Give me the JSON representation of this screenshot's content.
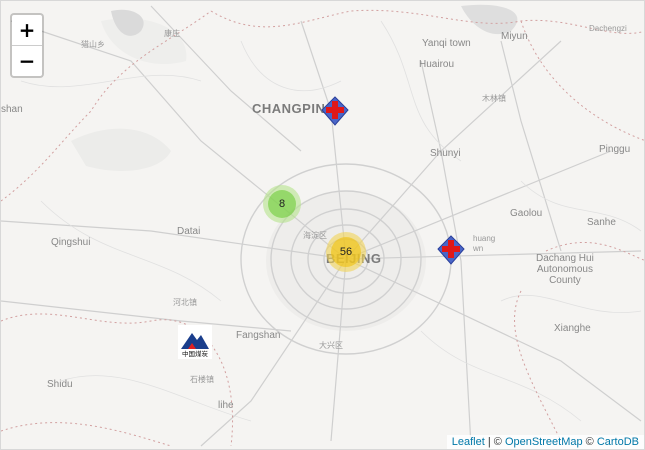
{
  "zoom": {
    "in_label": "+",
    "out_label": "−"
  },
  "labels": {
    "changping": "CHANGPING",
    "beijing": "BEIJING",
    "yanqi_town": "Yanqi town",
    "miyun": "Miyun",
    "dachengzi": "Dachengzi",
    "huairou": "Huairou",
    "mulin": "木林镇",
    "shunyi": "Shunyi",
    "pinggu": "Pinggu",
    "gaolou": "Gaolou",
    "sanhe": "Sanhe",
    "dachang": "Dachang Hui\nAutonomous\nCounty",
    "xianghe": "Xianghe",
    "fangshan": "Fangshan",
    "daxing": "大兴区",
    "haidian": "海淀区",
    "datai": "Datai",
    "qingshui": "Qingshui",
    "hebei_town": "河北镇",
    "shilou": "石楼镇",
    "shidu": "Shidu",
    "liihe": "lihe",
    "tongzhou": "huang\nwn",
    "kangzhuang": "康庄",
    "zhuoshan": "猎山乡",
    "shan_left": "shan",
    "changgou": "长沟镇"
  },
  "clusters": [
    {
      "count": "8",
      "color": "#b5e28c",
      "inner": "#6ecc39"
    },
    {
      "count": "56",
      "color": "#f1d357",
      "inner": "#f0c20c"
    }
  ],
  "markers": [
    {
      "name": "hospital-marker-changping",
      "type": "hospital-cross-icon"
    },
    {
      "name": "hospital-marker-east",
      "type": "hospital-cross-icon"
    },
    {
      "name": "coal-logo-marker",
      "type": "china-coal-logo-icon",
      "text": "中国煤炭"
    }
  ],
  "attribution": {
    "leaflet": "Leaflet",
    "sep1": " | © ",
    "osm": "OpenStreetMap",
    "sep2": " © ",
    "carto": "CartoDB"
  }
}
